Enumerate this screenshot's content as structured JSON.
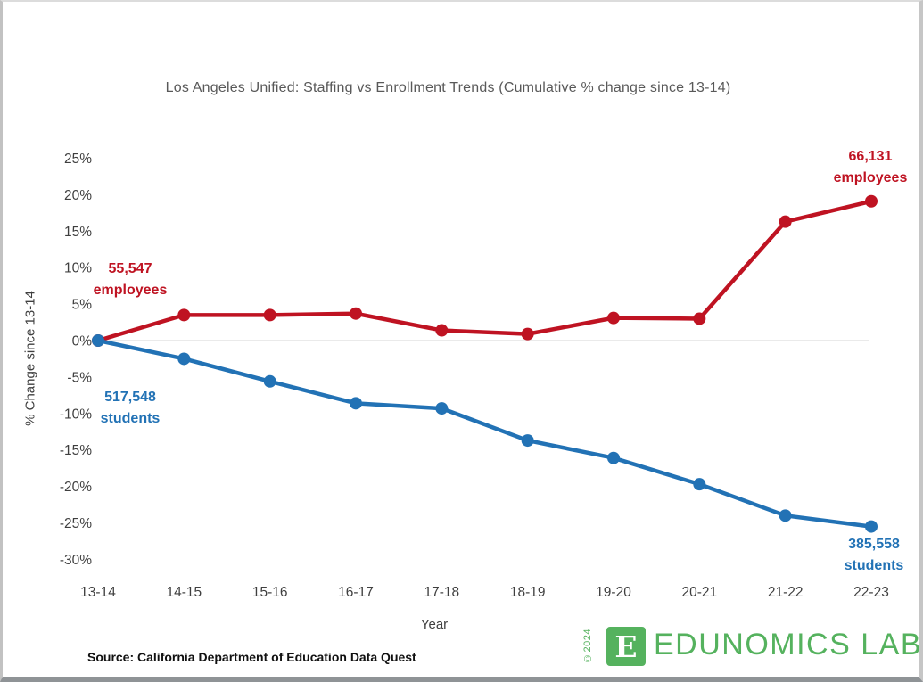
{
  "page": {
    "title": "Los Angeles Unified: Staffing vs Enrollment Trends (Cumulative % change since 13-14)",
    "source": "Source: California Department of Education Data Quest"
  },
  "chart_data": {
    "type": "line",
    "title": "Los Angeles Unified: Staffing vs Enrollment Trends (Cumulative % change since 13-14)",
    "xlabel": "Year",
    "ylabel": "% Change since 13-14",
    "ylim": [
      -30,
      25
    ],
    "grid": "zero-line-only",
    "gridline_value": 0,
    "legend_position": "none (series labeled directly on chart)",
    "x": [
      "13-14",
      "14-15",
      "15-16",
      "16-17",
      "17-18",
      "18-19",
      "19-20",
      "20-21",
      "21-22",
      "22-23"
    ],
    "y_ticks": [
      {
        "value": 25,
        "label": "25%"
      },
      {
        "value": 20,
        "label": "20%"
      },
      {
        "value": 15,
        "label": "15%"
      },
      {
        "value": 10,
        "label": "10%"
      },
      {
        "value": 5,
        "label": "5%"
      },
      {
        "value": 0,
        "label": "0%"
      },
      {
        "value": -5,
        "label": "-5%"
      },
      {
        "value": -10,
        "label": "-10%"
      },
      {
        "value": -15,
        "label": "-15%"
      },
      {
        "value": -20,
        "label": "-20%"
      },
      {
        "value": -25,
        "label": "-25%"
      },
      {
        "value": -30,
        "label": "-30%"
      }
    ],
    "series": [
      {
        "name": "employees",
        "color": "#bf1322",
        "values": [
          0,
          3.5,
          3.5,
          3.7,
          1.4,
          0.9,
          3.1,
          3.0,
          16.3,
          19.1
        ],
        "first_point_label": {
          "value": "55,547",
          "unit": "employees"
        },
        "last_point_label": {
          "value": "66,131",
          "unit": "employees"
        }
      },
      {
        "name": "students",
        "color": "#2272b5",
        "values": [
          0,
          -2.5,
          -5.6,
          -8.6,
          -9.3,
          -13.7,
          -16.1,
          -19.7,
          -24.0,
          -25.5
        ],
        "first_point_label": {
          "value": "517,548",
          "unit": "students"
        },
        "last_point_label": {
          "value": "385,558",
          "unit": "students"
        }
      }
    ]
  },
  "logo": {
    "copyright": "©2024",
    "mark": "E",
    "text": "EDUNOMICS LAB",
    "green": "#55b25e"
  }
}
